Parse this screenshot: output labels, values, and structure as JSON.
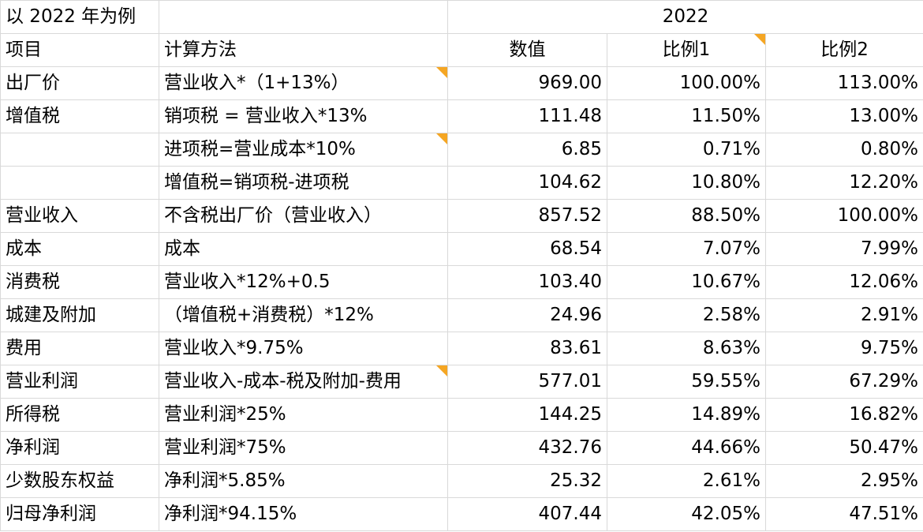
{
  "header": {
    "corner": "以 2022 年为例",
    "year": "2022"
  },
  "columns": [
    "项目",
    "计算方法",
    "数值",
    "比例1",
    "比例2"
  ],
  "rows": [
    {
      "item": "出厂价",
      "method": "营业收入*（1+13%）",
      "value": "969.00",
      "ratio1": "100.00%",
      "ratio2": "113.00%"
    },
    {
      "item": "增值税",
      "method": "销项税 = 营业收入*13%",
      "value": "111.48",
      "ratio1": "11.50%",
      "ratio2": "13.00%"
    },
    {
      "item": "",
      "method": "进项税=营业成本*10%",
      "value": "6.85",
      "ratio1": "0.71%",
      "ratio2": "0.80%"
    },
    {
      "item": "",
      "method": "增值税=销项税-进项税",
      "value": "104.62",
      "ratio1": "10.80%",
      "ratio2": "12.20%"
    },
    {
      "item": "营业收入",
      "method": "不含税出厂价（营业收入）",
      "value": "857.52",
      "ratio1": "88.50%",
      "ratio2": "100.00%"
    },
    {
      "item": "成本",
      "method": "成本",
      "value": "68.54",
      "ratio1": "7.07%",
      "ratio2": "7.99%"
    },
    {
      "item": "消费税",
      "method": "营业收入*12%+0.5",
      "value": "103.40",
      "ratio1": "10.67%",
      "ratio2": "12.06%"
    },
    {
      "item": "城建及附加",
      "method": "（增值税+消费税）*12%",
      "value": "24.96",
      "ratio1": "2.58%",
      "ratio2": "2.91%"
    },
    {
      "item": "费用",
      "method": "营业收入*9.75%",
      "value": "83.61",
      "ratio1": "8.63%",
      "ratio2": "9.75%"
    },
    {
      "item": "营业利润",
      "method": "营业收入-成本-税及附加-费用",
      "value": "577.01",
      "ratio1": "59.55%",
      "ratio2": "67.29%"
    },
    {
      "item": "所得税",
      "method": "营业利润*25%",
      "value": "144.25",
      "ratio1": "14.89%",
      "ratio2": "16.82%"
    },
    {
      "item": "净利润",
      "method": "营业利润*75%",
      "value": "432.76",
      "ratio1": "44.66%",
      "ratio2": "50.47%"
    },
    {
      "item": "少数股东权益",
      "method": "净利润*5.85%",
      "value": "25.32",
      "ratio1": "2.61%",
      "ratio2": "2.95%"
    },
    {
      "item": "归母净利润",
      "method": "净利润*94.15%",
      "value": "407.44",
      "ratio1": "42.05%",
      "ratio2": "47.51%"
    }
  ],
  "colors": {
    "grid": "#d9d9d9",
    "comment_flag": "#f5a623"
  }
}
